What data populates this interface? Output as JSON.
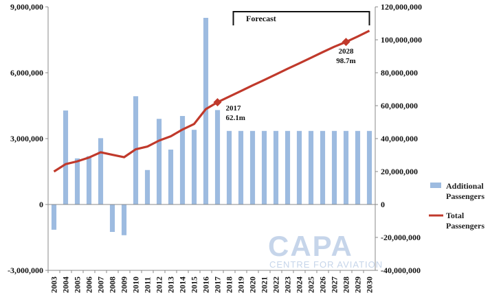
{
  "chart_data": {
    "type": "bar+line",
    "categories": [
      "2003",
      "2004",
      "2005",
      "2006",
      "2007",
      "2008",
      "2009",
      "2010",
      "2011",
      "2012",
      "2013",
      "2014",
      "2015",
      "2016",
      "2017",
      "2018",
      "2019",
      "2020",
      "2021",
      "2022",
      "2023",
      "2024",
      "2025",
      "2026",
      "2027",
      "2028",
      "2029",
      "2030"
    ],
    "series": [
      {
        "name": "Additional Passengers",
        "type": "bar",
        "axis": "left",
        "color": "#9dbbe0",
        "values": [
          -1150000,
          4280000,
          2100000,
          2200000,
          3020000,
          -1250000,
          -1400000,
          4930000,
          1570000,
          3900000,
          2500000,
          4030000,
          3400000,
          8500000,
          4300000,
          3350000,
          3350000,
          3350000,
          3350000,
          3350000,
          3350000,
          3350000,
          3350000,
          3350000,
          3350000,
          3350000,
          3350000,
          3350000
        ]
      },
      {
        "name": "Total Passengers",
        "type": "line",
        "axis": "right",
        "color": "#c0392b",
        "values": [
          20000000,
          24500000,
          26200000,
          28500000,
          31700000,
          30200000,
          28700000,
          33500000,
          35200000,
          38800000,
          41400000,
          45500000,
          48900000,
          57900000,
          62100000,
          65500000,
          68900000,
          72300000,
          75600000,
          79000000,
          82400000,
          85700000,
          89100000,
          92500000,
          95800000,
          98700000,
          102000000,
          105500000
        ]
      }
    ],
    "y_left": {
      "ylim": [
        -3000000,
        9000000
      ],
      "ticks": [
        -3000000,
        0,
        3000000,
        6000000,
        9000000
      ],
      "tick_labels": [
        "-3,000,000",
        "0",
        "3,000,000",
        "6,000,000",
        "9,000,000"
      ]
    },
    "y_right": {
      "ylim": [
        -40000000,
        120000000
      ],
      "ticks": [
        -40000000,
        -20000000,
        0,
        20000000,
        40000000,
        60000000,
        80000000,
        100000000,
        120000000
      ],
      "tick_labels": [
        "-40,000,000",
        "-20,000,000",
        "0",
        "20,000,000",
        "40,000,000",
        "60,000,000",
        "80,000,000",
        "100,000,000",
        "120,000,000"
      ]
    },
    "annotations": [
      {
        "category": "2017",
        "year_label": "2017",
        "value_label": "62.1m"
      },
      {
        "category": "2028",
        "year_label": "2028",
        "value_label": "98.7m"
      }
    ],
    "forecast": {
      "label": "Forecast",
      "start": "2018",
      "end": "2030"
    },
    "legend": {
      "placement": "right",
      "items": [
        {
          "line1": "Additional",
          "line2": "Passengers"
        },
        {
          "line1": "Total",
          "line2": "Passengers"
        }
      ]
    },
    "grid": false
  },
  "watermark": {
    "big": "CAPA",
    "small": "CENTRE FOR AVIATION"
  }
}
